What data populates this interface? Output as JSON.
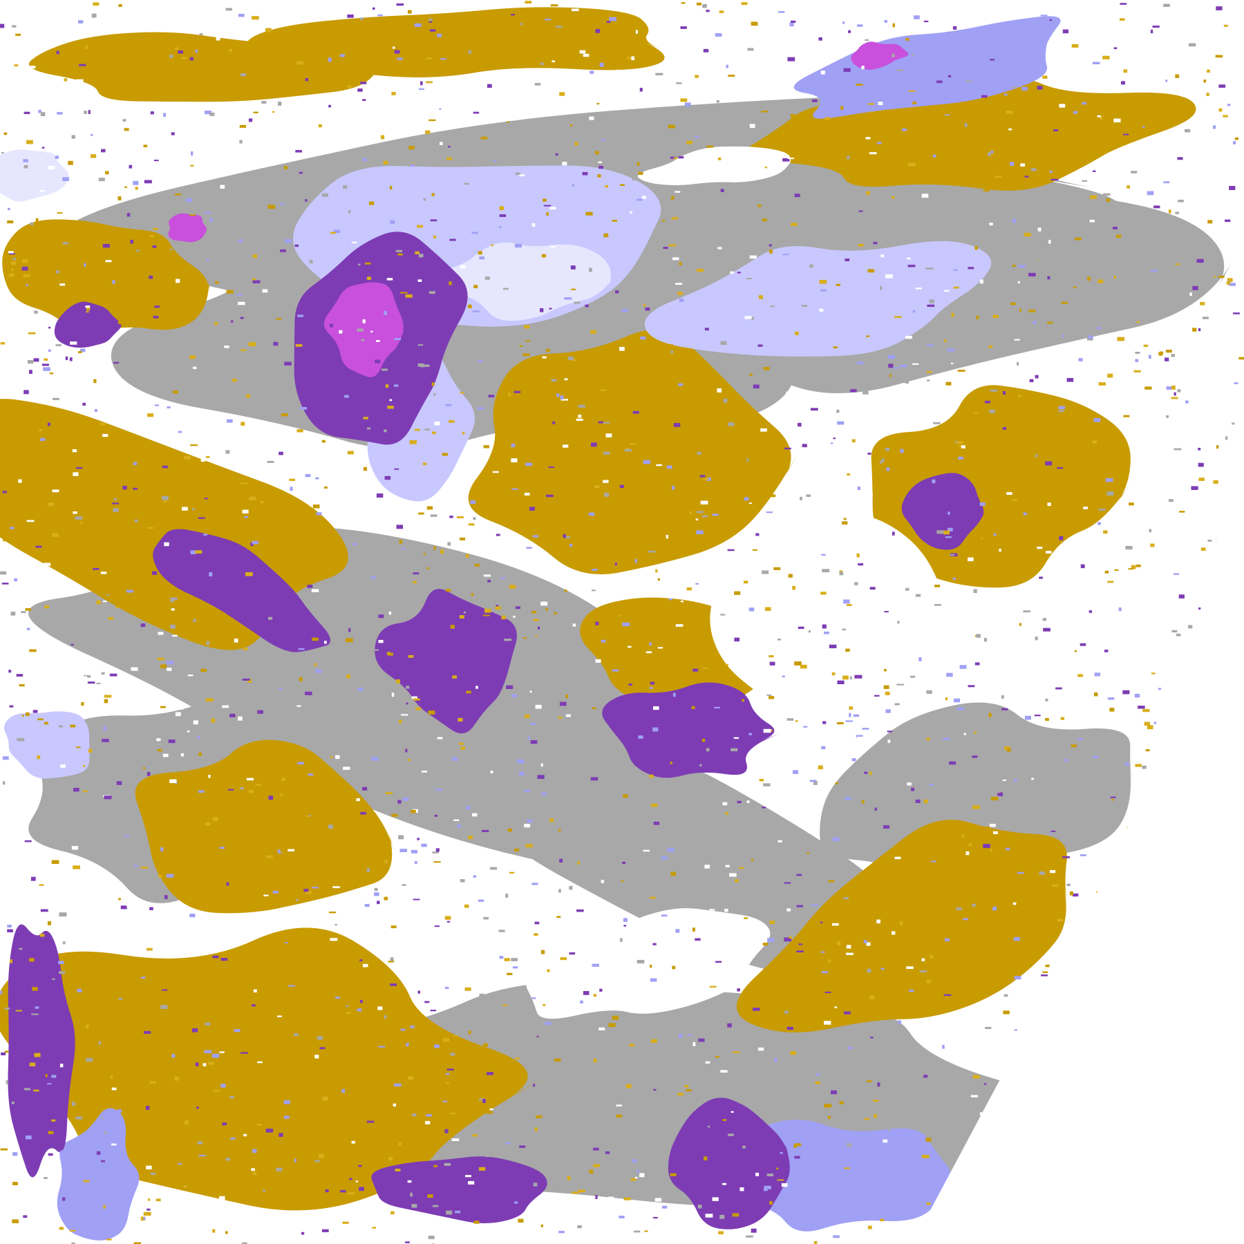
{
  "map": {
    "type": "cloud-classification-raster",
    "palette": {
      "background": "#FFFFFF",
      "gold": "#C89B00",
      "gold_light": "#D9AE1A",
      "purple": "#7D3CB4",
      "magenta": "#C850DC",
      "periwinkle": "#A0A0F5",
      "lavender": "#C8C8FF",
      "pale": "#E6E6FF",
      "gray": "#A8A8A8",
      "gray_dark": "#8C8C8C"
    }
  }
}
